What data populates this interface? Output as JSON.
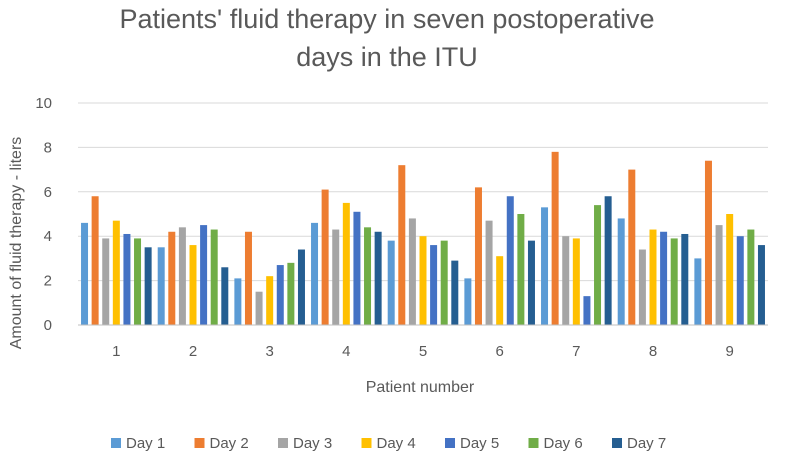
{
  "chart_data": {
    "type": "bar",
    "title_lines": [
      "Patients' fluid therapy in  seven postoperative",
      "days in the ITU"
    ],
    "xlabel": "Patient number",
    "ylabel": "Amount  of fluid therapy - liters",
    "ylim": [
      0,
      10
    ],
    "yticks": [
      "0",
      "2",
      "4",
      "6",
      "8",
      "10"
    ],
    "grid": true,
    "legend_position": "bottom",
    "categories": [
      "1",
      "2",
      "3",
      "4",
      "5",
      "6",
      "7",
      "8",
      "9"
    ],
    "series": [
      {
        "name": "Day 1",
        "color": "#5b9bd5",
        "values": [
          4.6,
          3.5,
          2.1,
          4.6,
          3.8,
          2.1,
          5.3,
          4.8,
          3.0
        ]
      },
      {
        "name": "Day 2",
        "color": "#ed7d31",
        "values": [
          5.8,
          4.2,
          4.2,
          6.1,
          7.2,
          6.2,
          7.8,
          7.0,
          7.4
        ]
      },
      {
        "name": "Day 3",
        "color": "#a5a5a5",
        "values": [
          3.9,
          4.4,
          1.5,
          4.3,
          4.8,
          4.7,
          4.0,
          3.4,
          4.5
        ]
      },
      {
        "name": "Day 4",
        "color": "#ffc000",
        "values": [
          4.7,
          3.6,
          2.2,
          5.5,
          4.0,
          3.1,
          3.9,
          4.3,
          5.0
        ]
      },
      {
        "name": "Day 5",
        "color": "#4472c4",
        "values": [
          4.1,
          4.5,
          2.7,
          5.1,
          3.6,
          5.8,
          1.3,
          4.2,
          4.0
        ]
      },
      {
        "name": "Day 6",
        "color": "#70ad47",
        "values": [
          3.9,
          4.3,
          2.8,
          4.4,
          3.8,
          5.0,
          5.4,
          3.9,
          4.3
        ]
      },
      {
        "name": "Day 7",
        "color": "#255e91",
        "values": [
          3.5,
          2.6,
          3.4,
          4.2,
          2.9,
          3.8,
          5.8,
          4.1,
          3.6
        ]
      }
    ]
  }
}
